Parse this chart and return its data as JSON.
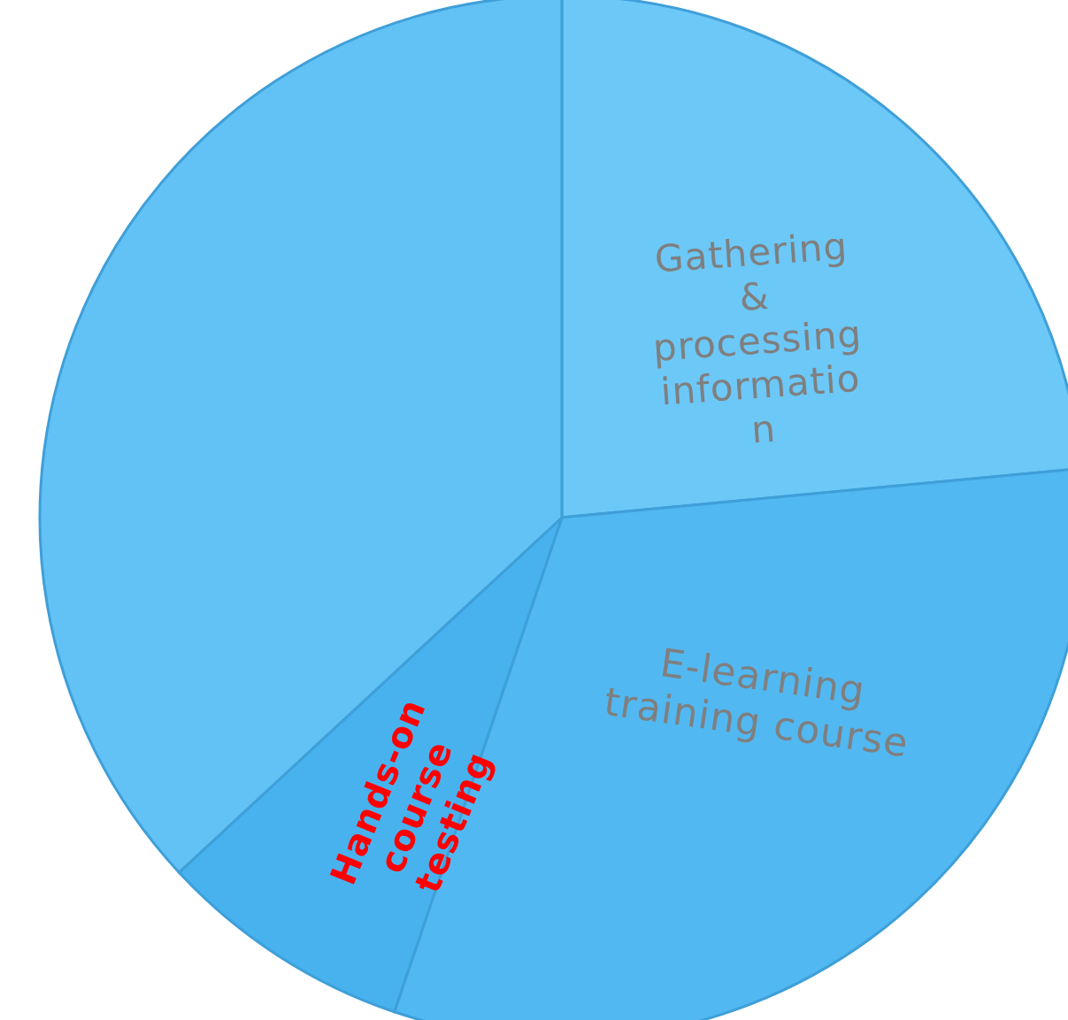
{
  "chart_data": {
    "type": "pie",
    "categories": [
      "Gathering & processing information",
      "E-learning training course",
      "Hands-on course testing",
      null
    ],
    "values": [
      23.5,
      31.7,
      7.9,
      36.9
    ],
    "colors": [
      "#6cc8f7",
      "#52b8f1",
      "#48b2ef",
      "#62c2f5"
    ]
  }
}
